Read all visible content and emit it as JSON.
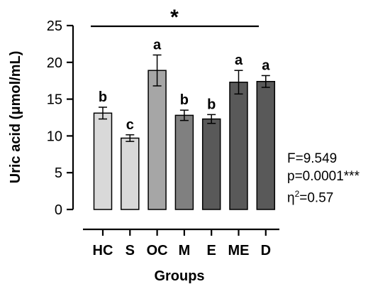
{
  "chart_data": {
    "type": "bar",
    "ylabel": "Uric acid (μmol/mL)",
    "xlabel": "Groups",
    "categories": [
      "HC",
      "S",
      "OC",
      "M",
      "E",
      "ME",
      "D"
    ],
    "values": [
      13.1,
      9.7,
      18.9,
      12.8,
      12.3,
      17.3,
      17.4
    ],
    "errors": [
      0.8,
      0.45,
      2.1,
      0.7,
      0.6,
      1.6,
      0.8
    ],
    "letters": [
      "b",
      "c",
      "a",
      "b",
      "b",
      "a",
      "a"
    ],
    "colors": [
      "#d9d9d9",
      "#d9d9d9",
      "#a6a6a6",
      "#808080",
      "#595959",
      "#595959",
      "#595959"
    ],
    "ylim": [
      0,
      25
    ],
    "yticks": [
      "0",
      "5",
      "10",
      "15",
      "20",
      "25"
    ],
    "significance": "*",
    "grid": false
  },
  "stats": {
    "f": "F=9.549",
    "p": "p=0.0001***",
    "eta_base": "η",
    "eta_sup": "2",
    "eta_value": "=0.57"
  }
}
